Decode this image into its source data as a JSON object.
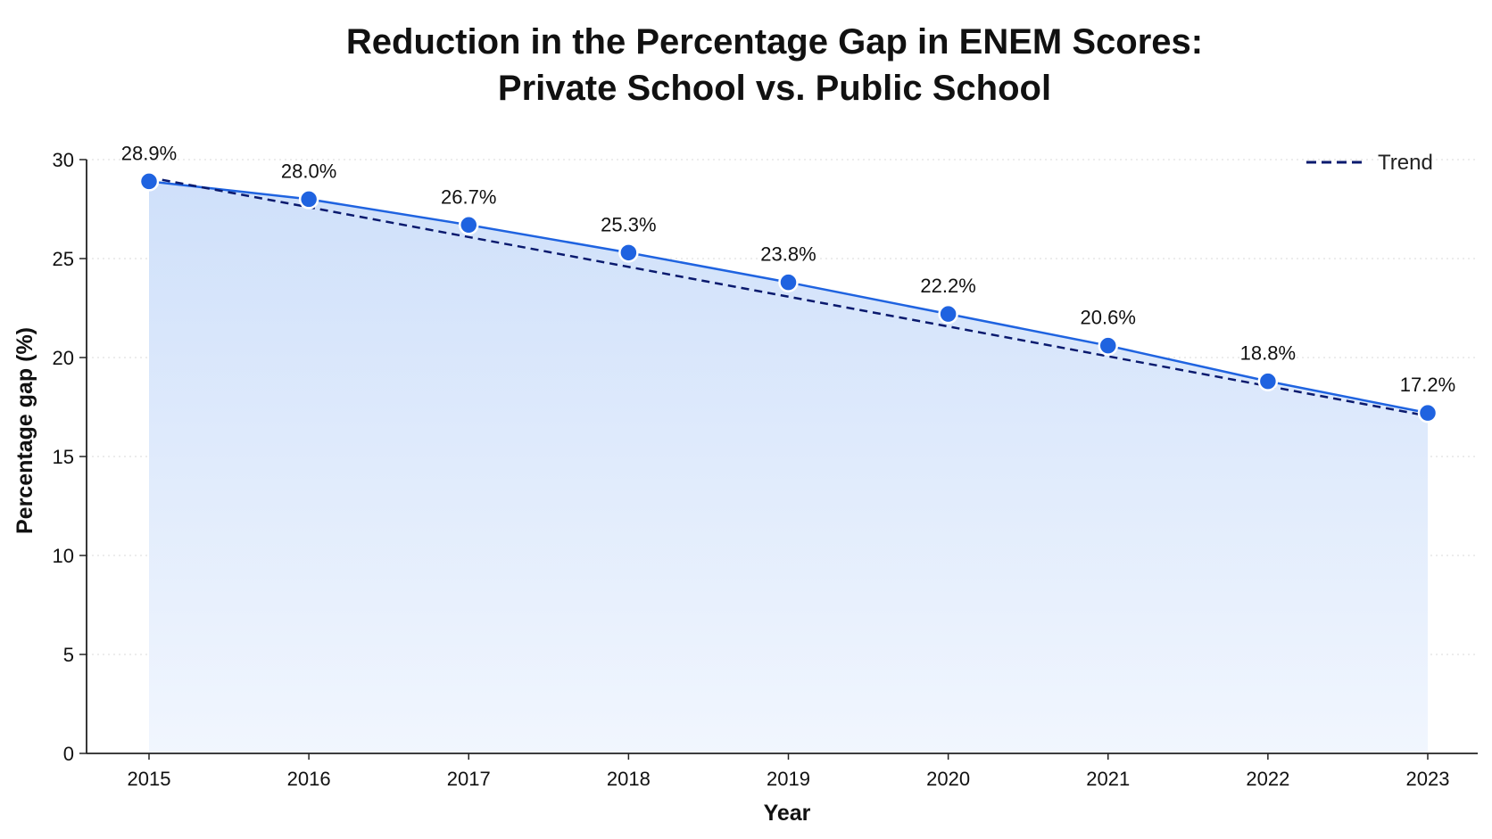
{
  "chart_data": {
    "type": "area",
    "title_lines": [
      "Reduction in the Percentage Gap in ENEM Scores:",
      "Private School vs. Public School"
    ],
    "xlabel": "Year",
    "ylabel": "Percentage gap (%)",
    "x": [
      "2015",
      "2016",
      "2017",
      "2018",
      "2019",
      "2020",
      "2021",
      "2022",
      "2023"
    ],
    "values": [
      28.9,
      28.0,
      26.7,
      25.3,
      23.8,
      22.2,
      20.6,
      18.8,
      17.2
    ],
    "data_labels": [
      "28.9%",
      "28.0%",
      "26.7%",
      "25.3%",
      "23.8%",
      "22.2%",
      "20.6%",
      "18.8%",
      "17.2%"
    ],
    "trend": {
      "name": "Trend",
      "start": 29.1,
      "end": 17.05
    },
    "ylim": [
      0,
      30
    ],
    "yticks": [
      "0",
      "5",
      "10",
      "15",
      "20",
      "25",
      "30"
    ],
    "grid": "horizontal dotted",
    "legend_position": "top-right",
    "colors": {
      "line": "#1f63e0",
      "marker": "#1f63e0",
      "fill_top": "#cfe0fa",
      "fill_bottom": "#f1f6fe",
      "trend": "#0a1a6e",
      "axis": "#222222",
      "grid": "#d8d8d8"
    }
  }
}
